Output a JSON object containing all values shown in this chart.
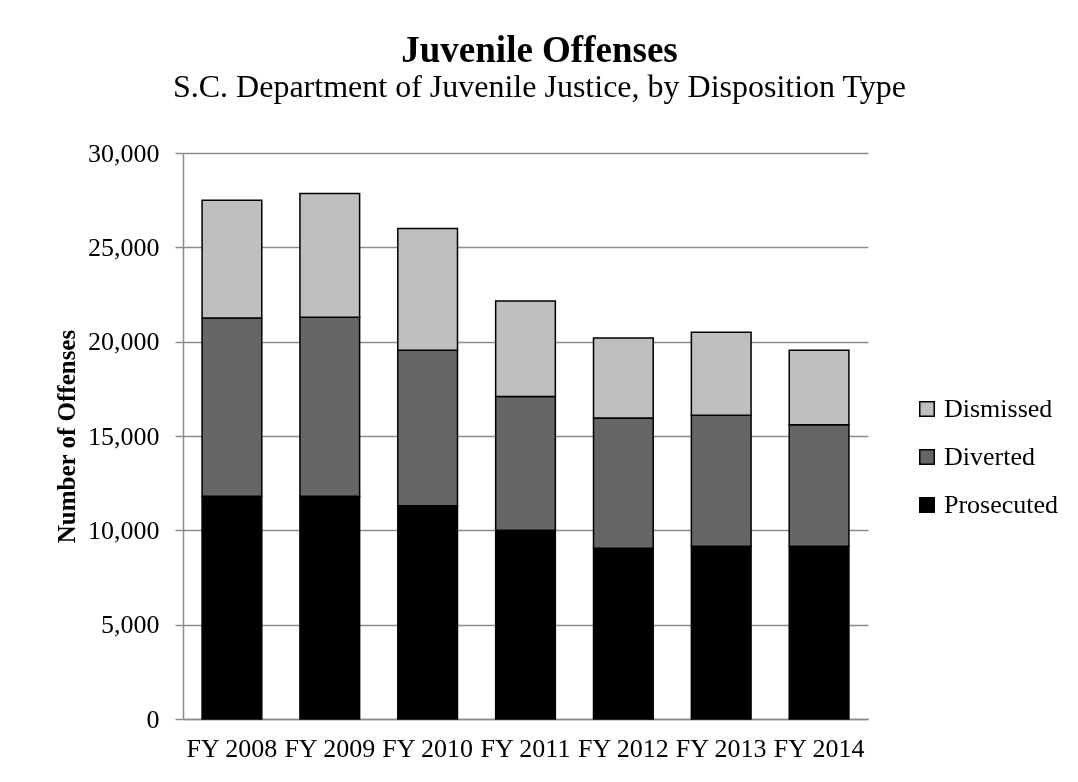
{
  "chart_data": {
    "type": "bar",
    "title": "Juvenile  Offenses",
    "subtitle": "S.C. Department of  Juvenile Justice, by Disposition Type",
    "ylabel": "Number of Offenses",
    "categories": [
      "FY 2008",
      "FY 2009",
      "FY 2010",
      "FY 2011",
      "FY 2012",
      "FY 2013",
      "FY 2014"
    ],
    "series": [
      {
        "name": "Prosecuted",
        "color": "#000000",
        "values": [
          11800,
          11800,
          11300,
          10000,
          9050,
          9150,
          9150
        ]
      },
      {
        "name": "Diverted",
        "color": "#666666",
        "values": [
          9450,
          9500,
          8250,
          7100,
          6900,
          6950,
          6450
        ]
      },
      {
        "name": "Dismissed",
        "color": "#bfbfbf",
        "values": [
          6250,
          6550,
          6450,
          5050,
          4250,
          4400,
          3950
        ]
      }
    ],
    "stacked": true,
    "ylim": [
      0,
      30000
    ],
    "yticks": [
      0,
      {
        "value": 5000,
        "label": "5,000"
      },
      {
        "value": 10000,
        "label": "10,000"
      },
      {
        "value": 15000,
        "label": "15,000"
      },
      {
        "value": 20000,
        "label": "20,000"
      },
      {
        "value": 25000,
        "label": "25,000"
      },
      {
        "value": 30000,
        "label": "30,000"
      }
    ],
    "grid": "y",
    "legend": "right"
  }
}
